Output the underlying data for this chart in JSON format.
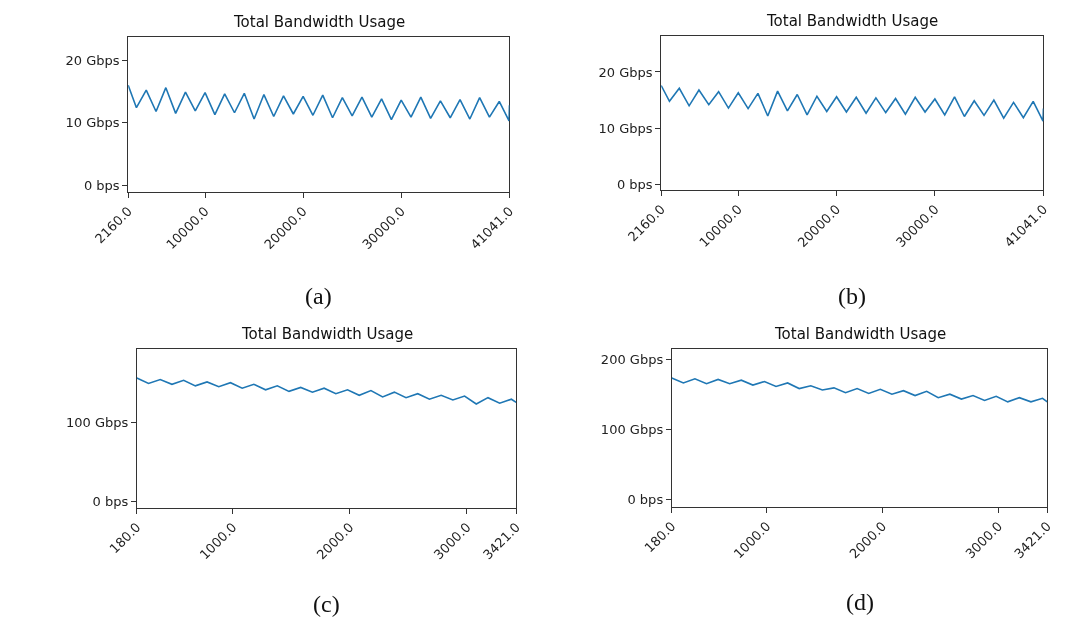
{
  "chart_data": [
    {
      "type": "line",
      "title": "Total Bandwidth Usage",
      "annotations": [
        "(a)"
      ],
      "color": "#1f77b4",
      "x": [
        2160,
        3000,
        4000,
        5000,
        6000,
        7000,
        8000,
        9000,
        10000,
        11000,
        12000,
        13000,
        14000,
        15000,
        16000,
        17000,
        18000,
        19000,
        20000,
        21000,
        22000,
        23000,
        24000,
        25000,
        26000,
        27000,
        28000,
        29000,
        30000,
        31000,
        32000,
        33000,
        34000,
        35000,
        36000,
        37000,
        38000,
        39000,
        40000,
        41000,
        41041
      ],
      "values": [
        16.0,
        12.4,
        15.2,
        11.8,
        15.6,
        11.5,
        14.9,
        11.9,
        14.8,
        11.3,
        14.6,
        11.6,
        14.7,
        10.6,
        14.5,
        11.0,
        14.3,
        11.4,
        14.2,
        11.2,
        14.4,
        10.8,
        14.0,
        11.1,
        14.1,
        10.9,
        13.8,
        10.5,
        13.6,
        10.9,
        14.1,
        10.7,
        13.5,
        10.8,
        13.7,
        10.6,
        14.0,
        10.9,
        13.4,
        10.3,
        12.8
      ],
      "xlim": [
        2160,
        41041
      ],
      "xticks": [
        {
          "value": 2160,
          "label": "2160.0"
        },
        {
          "value": 10000,
          "label": "10000.0"
        },
        {
          "value": 20000,
          "label": "20000.0"
        },
        {
          "value": 30000,
          "label": "30000.0"
        },
        {
          "value": 41041,
          "label": "41041.0"
        }
      ],
      "ylim": [
        -1.1,
        23.7
      ],
      "yticks": [
        {
          "value": 0,
          "label": "0 bps"
        },
        {
          "value": 10,
          "label": "10 Gbps"
        },
        {
          "value": 20,
          "label": "20 Gbps"
        }
      ]
    },
    {
      "type": "line",
      "title": "Total Bandwidth Usage",
      "annotations": [
        "(b)"
      ],
      "color": "#1f77b4",
      "x": [
        2160,
        3000,
        4000,
        5000,
        6000,
        7000,
        8000,
        9000,
        10000,
        11000,
        12000,
        13000,
        14000,
        15000,
        16000,
        17000,
        18000,
        19000,
        20000,
        21000,
        22000,
        23000,
        24000,
        25000,
        26000,
        27000,
        28000,
        29000,
        30000,
        31000,
        32000,
        33000,
        34000,
        35000,
        36000,
        37000,
        38000,
        39000,
        40000,
        41000,
        41041
      ],
      "values": [
        17.6,
        14.8,
        17.1,
        14.0,
        16.8,
        14.2,
        16.5,
        13.6,
        16.3,
        13.5,
        16.2,
        12.2,
        16.6,
        13.1,
        16.0,
        12.4,
        15.7,
        13.0,
        15.6,
        12.9,
        15.5,
        12.7,
        15.4,
        12.8,
        15.3,
        12.5,
        15.5,
        12.9,
        15.2,
        12.4,
        15.6,
        12.1,
        14.9,
        12.3,
        15.0,
        11.8,
        14.6,
        11.9,
        14.8,
        11.3,
        13.5
      ],
      "xlim": [
        2160,
        41041
      ],
      "xticks": [
        {
          "value": 2160,
          "label": "2160.0"
        },
        {
          "value": 10000,
          "label": "10000.0"
        },
        {
          "value": 20000,
          "label": "20000.0"
        },
        {
          "value": 30000,
          "label": "30000.0"
        },
        {
          "value": 41041,
          "label": "41041.0"
        }
      ],
      "ylim": [
        -1.0,
        26.4
      ],
      "yticks": [
        {
          "value": 0,
          "label": "0 bps"
        },
        {
          "value": 10,
          "label": "10 Gbps"
        },
        {
          "value": 20,
          "label": "20 Gbps"
        }
      ]
    },
    {
      "type": "line",
      "title": "Total Bandwidth Usage",
      "annotations": [
        "(c)"
      ],
      "color": "#1f77b4",
      "x": [
        180,
        280,
        380,
        480,
        580,
        680,
        780,
        880,
        980,
        1080,
        1180,
        1280,
        1380,
        1480,
        1580,
        1680,
        1780,
        1880,
        1980,
        2080,
        2180,
        2280,
        2380,
        2480,
        2580,
        2680,
        2780,
        2880,
        2980,
        3080,
        3180,
        3280,
        3380,
        3421
      ],
      "values": [
        157,
        150,
        155,
        149,
        154,
        147,
        152,
        146,
        151,
        144,
        149,
        142,
        147,
        140,
        145,
        139,
        144,
        137,
        142,
        135,
        141,
        133,
        139,
        132,
        137,
        130,
        135,
        129,
        134,
        124,
        132,
        125,
        130,
        126
      ],
      "xlim": [
        180,
        3421
      ],
      "xticks": [
        {
          "value": 180,
          "label": "180.0"
        },
        {
          "value": 1000,
          "label": "1000.0"
        },
        {
          "value": 2000,
          "label": "2000.0"
        },
        {
          "value": 3000,
          "label": "3000.0"
        },
        {
          "value": 3421,
          "label": "3421.0"
        }
      ],
      "ylim": [
        -8.7,
        194
      ],
      "yticks": [
        {
          "value": 0,
          "label": "0 bps"
        },
        {
          "value": 100,
          "label": "100 Gbps"
        }
      ]
    },
    {
      "type": "line",
      "title": "Total Bandwidth Usage",
      "annotations": [
        "(d)"
      ],
      "color": "#1f77b4",
      "x": [
        180,
        280,
        380,
        480,
        580,
        680,
        780,
        880,
        980,
        1080,
        1180,
        1280,
        1380,
        1480,
        1580,
        1680,
        1780,
        1880,
        1980,
        2080,
        2180,
        2280,
        2380,
        2480,
        2580,
        2680,
        2780,
        2880,
        2980,
        3080,
        3180,
        3280,
        3380,
        3421
      ],
      "values": [
        174,
        167,
        173,
        166,
        172,
        166,
        171,
        164,
        169,
        162,
        167,
        159,
        163,
        157,
        160,
        153,
        159,
        152,
        158,
        151,
        156,
        149,
        155,
        146,
        151,
        144,
        149,
        142,
        148,
        140,
        146,
        140,
        145,
        140
      ],
      "xlim": [
        180,
        3421
      ],
      "xticks": [
        {
          "value": 180,
          "label": "180.0"
        },
        {
          "value": 1000,
          "label": "1000.0"
        },
        {
          "value": 2000,
          "label": "2000.0"
        },
        {
          "value": 3000,
          "label": "3000.0"
        },
        {
          "value": 3421,
          "label": "3421.0"
        }
      ],
      "ylim": [
        -10.8,
        215.7
      ],
      "yticks": [
        {
          "value": 0,
          "label": "0 bps"
        },
        {
          "value": 100,
          "label": "100 Gbps"
        },
        {
          "value": 200,
          "label": "200 Gbps"
        }
      ]
    }
  ]
}
